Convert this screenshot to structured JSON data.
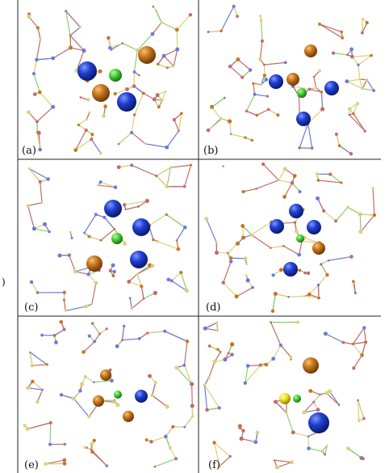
{
  "figure": {
    "panels": [
      {
        "id": "a",
        "label": "(a)",
        "spheres": [
          "blue",
          "blue",
          "orange",
          "orange",
          "green"
        ]
      },
      {
        "id": "b",
        "label": "(b)",
        "spheres": [
          "blue",
          "blue",
          "blue",
          "orange",
          "orange",
          "green"
        ]
      },
      {
        "id": "c",
        "label": "(c)",
        "spheres": [
          "blue",
          "blue",
          "blue",
          "orange",
          "green"
        ]
      },
      {
        "id": "d",
        "label": "(d)",
        "spheres": [
          "blue",
          "blue",
          "blue",
          "blue",
          "orange",
          "green"
        ]
      },
      {
        "id": "e",
        "label": "(e)",
        "spheres": [
          "blue",
          "orange",
          "orange",
          "orange",
          "green"
        ]
      },
      {
        "id": "f",
        "label": "(f)",
        "spheres": [
          "blue",
          "orange",
          "yellow",
          "green"
        ]
      }
    ],
    "edge_glyph": ")"
  },
  "colors": {
    "blue": "#1f3fd0",
    "orange": "#c8761c",
    "green": "#3fcf2f",
    "yellow": "#e9e01f",
    "bond_yellow": "#d9d27a",
    "bond_red": "#c46a6a",
    "bond_blue": "#6a7bd8",
    "bond_green": "#8acf6a",
    "frame": "#222222"
  }
}
